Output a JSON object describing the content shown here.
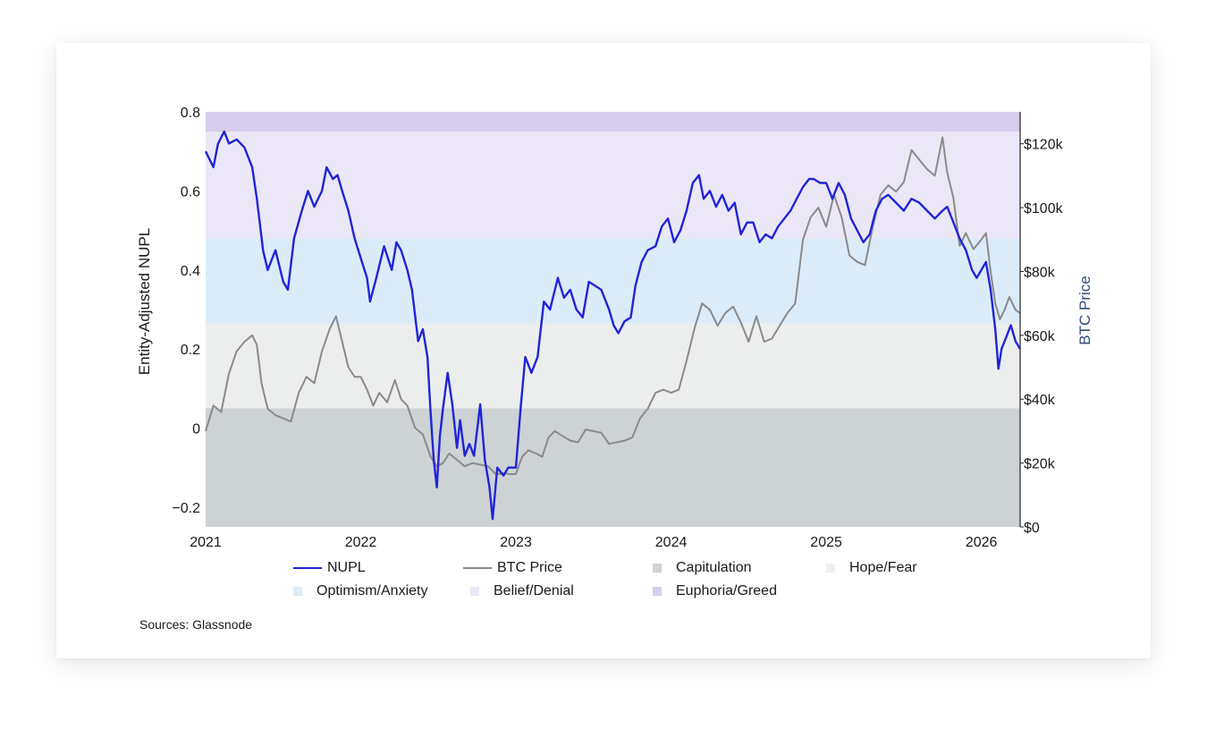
{
  "source_note": "Sources: Glassnode",
  "colors": {
    "nupl": "#1f24d8",
    "btc": "#8a8a8a",
    "capitulation": "#cdd2d4",
    "hope_fear": "#eceeed",
    "optimism_anxiety": "#dcebf8",
    "belief_denial": "#ece7f6",
    "euphoria_greed": "#d6ccec"
  },
  "legend": [
    {
      "label": "NUPL",
      "kind": "line",
      "color_key": "nupl"
    },
    {
      "label": "BTC Price",
      "kind": "line",
      "color_key": "btc"
    },
    {
      "label": "Capitulation",
      "kind": "box",
      "color_key": "capitulation"
    },
    {
      "label": "Hope/Fear",
      "kind": "box",
      "color_key": "hope_fear"
    },
    {
      "label": "Optimism/Anxiety",
      "kind": "box",
      "color_key": "optimism_anxiety"
    },
    {
      "label": "Belief/Denial",
      "kind": "box",
      "color_key": "belief_denial"
    },
    {
      "label": "Euphoria/Greed",
      "kind": "box",
      "color_key": "euphoria_greed"
    }
  ],
  "chart_data": {
    "type": "line",
    "title": "",
    "ylabel": "Entity-Adjusted NUPL",
    "y2label": "BTC Price",
    "xlim": [
      2021.0,
      2026.25
    ],
    "ylim": [
      -0.25,
      0.8
    ],
    "y2lim": [
      0,
      130000
    ],
    "x_ticks": [
      "2021",
      "2022",
      "2023",
      "2024",
      "2025",
      "2026"
    ],
    "y_ticks": [
      "−0.2",
      "0",
      "0.2",
      "0.4",
      "0.6",
      "0.8"
    ],
    "y2_ticks": [
      "$0",
      "$20k",
      "$40k",
      "$60k",
      "$80k",
      "$100k",
      "$120k"
    ],
    "zones": [
      {
        "name": "Capitulation",
        "from": -0.25,
        "to": 0.05,
        "color_key": "capitulation"
      },
      {
        "name": "Hope/Fear",
        "from": 0.05,
        "to": 0.265,
        "color_key": "hope_fear"
      },
      {
        "name": "Optimism/Anxiety",
        "from": 0.265,
        "to": 0.48,
        "color_key": "optimism_anxiety"
      },
      {
        "name": "Belief/Denial",
        "from": 0.48,
        "to": 0.75,
        "color_key": "belief_denial"
      },
      {
        "name": "Euphoria/Greed",
        "from": 0.75,
        "to": 0.8,
        "color_key": "euphoria_greed"
      }
    ],
    "series": [
      {
        "name": "NUPL",
        "axis": "left",
        "color_key": "nupl",
        "points": [
          [
            2021.0,
            0.7
          ],
          [
            2021.05,
            0.66
          ],
          [
            2021.08,
            0.72
          ],
          [
            2021.12,
            0.75
          ],
          [
            2021.15,
            0.72
          ],
          [
            2021.2,
            0.73
          ],
          [
            2021.25,
            0.71
          ],
          [
            2021.3,
            0.66
          ],
          [
            2021.33,
            0.58
          ],
          [
            2021.37,
            0.45
          ],
          [
            2021.4,
            0.4
          ],
          [
            2021.45,
            0.45
          ],
          [
            2021.5,
            0.37
          ],
          [
            2021.53,
            0.35
          ],
          [
            2021.57,
            0.48
          ],
          [
            2021.62,
            0.55
          ],
          [
            2021.66,
            0.6
          ],
          [
            2021.7,
            0.56
          ],
          [
            2021.75,
            0.6
          ],
          [
            2021.78,
            0.66
          ],
          [
            2021.82,
            0.63
          ],
          [
            2021.85,
            0.64
          ],
          [
            2021.88,
            0.6
          ],
          [
            2021.92,
            0.55
          ],
          [
            2021.96,
            0.48
          ],
          [
            2022.0,
            0.43
          ],
          [
            2022.04,
            0.38
          ],
          [
            2022.06,
            0.32
          ],
          [
            2022.1,
            0.38
          ],
          [
            2022.15,
            0.46
          ],
          [
            2022.2,
            0.4
          ],
          [
            2022.23,
            0.47
          ],
          [
            2022.26,
            0.45
          ],
          [
            2022.3,
            0.4
          ],
          [
            2022.33,
            0.35
          ],
          [
            2022.37,
            0.22
          ],
          [
            2022.4,
            0.25
          ],
          [
            2022.43,
            0.18
          ],
          [
            2022.45,
            0.04
          ],
          [
            2022.47,
            -0.08
          ],
          [
            2022.49,
            -0.15
          ],
          [
            2022.51,
            -0.02
          ],
          [
            2022.53,
            0.05
          ],
          [
            2022.56,
            0.14
          ],
          [
            2022.59,
            0.06
          ],
          [
            2022.62,
            -0.05
          ],
          [
            2022.64,
            0.02
          ],
          [
            2022.67,
            -0.07
          ],
          [
            2022.7,
            -0.04
          ],
          [
            2022.73,
            -0.07
          ],
          [
            2022.77,
            0.06
          ],
          [
            2022.8,
            -0.08
          ],
          [
            2022.83,
            -0.15
          ],
          [
            2022.85,
            -0.23
          ],
          [
            2022.88,
            -0.1
          ],
          [
            2022.92,
            -0.12
          ],
          [
            2022.95,
            -0.1
          ],
          [
            2023.0,
            -0.1
          ],
          [
            2023.03,
            0.05
          ],
          [
            2023.06,
            0.18
          ],
          [
            2023.1,
            0.14
          ],
          [
            2023.14,
            0.18
          ],
          [
            2023.18,
            0.32
          ],
          [
            2023.22,
            0.3
          ],
          [
            2023.27,
            0.38
          ],
          [
            2023.31,
            0.33
          ],
          [
            2023.35,
            0.35
          ],
          [
            2023.39,
            0.3
          ],
          [
            2023.43,
            0.28
          ],
          [
            2023.47,
            0.37
          ],
          [
            2023.51,
            0.36
          ],
          [
            2023.55,
            0.35
          ],
          [
            2023.6,
            0.3
          ],
          [
            2023.63,
            0.26
          ],
          [
            2023.66,
            0.24
          ],
          [
            2023.7,
            0.27
          ],
          [
            2023.74,
            0.28
          ],
          [
            2023.77,
            0.36
          ],
          [
            2023.81,
            0.42
          ],
          [
            2023.85,
            0.45
          ],
          [
            2023.9,
            0.46
          ],
          [
            2023.94,
            0.51
          ],
          [
            2023.98,
            0.53
          ],
          [
            2024.02,
            0.47
          ],
          [
            2024.06,
            0.5
          ],
          [
            2024.1,
            0.55
          ],
          [
            2024.14,
            0.62
          ],
          [
            2024.18,
            0.64
          ],
          [
            2024.21,
            0.58
          ],
          [
            2024.25,
            0.6
          ],
          [
            2024.29,
            0.56
          ],
          [
            2024.33,
            0.59
          ],
          [
            2024.37,
            0.55
          ],
          [
            2024.41,
            0.57
          ],
          [
            2024.45,
            0.49
          ],
          [
            2024.49,
            0.52
          ],
          [
            2024.53,
            0.52
          ],
          [
            2024.57,
            0.47
          ],
          [
            2024.61,
            0.49
          ],
          [
            2024.65,
            0.48
          ],
          [
            2024.69,
            0.51
          ],
          [
            2024.73,
            0.53
          ],
          [
            2024.77,
            0.55
          ],
          [
            2024.81,
            0.58
          ],
          [
            2024.85,
            0.61
          ],
          [
            2024.89,
            0.63
          ],
          [
            2024.92,
            0.63
          ],
          [
            2024.96,
            0.62
          ],
          [
            2025.0,
            0.62
          ],
          [
            2025.04,
            0.58
          ],
          [
            2025.08,
            0.62
          ],
          [
            2025.12,
            0.59
          ],
          [
            2025.16,
            0.53
          ],
          [
            2025.2,
            0.5
          ],
          [
            2025.24,
            0.47
          ],
          [
            2025.28,
            0.49
          ],
          [
            2025.32,
            0.55
          ],
          [
            2025.36,
            0.58
          ],
          [
            2025.4,
            0.59
          ],
          [
            2025.45,
            0.57
          ],
          [
            2025.5,
            0.55
          ],
          [
            2025.55,
            0.58
          ],
          [
            2025.6,
            0.57
          ],
          [
            2025.65,
            0.55
          ],
          [
            2025.7,
            0.53
          ],
          [
            2025.75,
            0.55
          ],
          [
            2025.78,
            0.56
          ],
          [
            2025.82,
            0.52
          ],
          [
            2025.86,
            0.48
          ],
          [
            2025.9,
            0.45
          ],
          [
            2025.94,
            0.4
          ],
          [
            2025.97,
            0.38
          ],
          [
            2026.0,
            0.4
          ],
          [
            2026.03,
            0.42
          ],
          [
            2026.06,
            0.35
          ],
          [
            2026.09,
            0.25
          ],
          [
            2026.11,
            0.15
          ],
          [
            2026.13,
            0.2
          ],
          [
            2026.16,
            0.23
          ],
          [
            2026.19,
            0.26
          ],
          [
            2026.22,
            0.22
          ],
          [
            2026.25,
            0.2
          ]
        ]
      },
      {
        "name": "BTC Price",
        "axis": "right",
        "color_key": "btc",
        "points": [
          [
            2021.0,
            30000
          ],
          [
            2021.05,
            38000
          ],
          [
            2021.1,
            36000
          ],
          [
            2021.15,
            48000
          ],
          [
            2021.2,
            55000
          ],
          [
            2021.25,
            58000
          ],
          [
            2021.3,
            60000
          ],
          [
            2021.33,
            57000
          ],
          [
            2021.36,
            45000
          ],
          [
            2021.4,
            37000
          ],
          [
            2021.45,
            35000
          ],
          [
            2021.5,
            34000
          ],
          [
            2021.55,
            33000
          ],
          [
            2021.6,
            42000
          ],
          [
            2021.65,
            47000
          ],
          [
            2021.7,
            45000
          ],
          [
            2021.75,
            55000
          ],
          [
            2021.8,
            62000
          ],
          [
            2021.84,
            66000
          ],
          [
            2021.88,
            58000
          ],
          [
            2021.92,
            50000
          ],
          [
            2021.96,
            47000
          ],
          [
            2022.0,
            47000
          ],
          [
            2022.04,
            43000
          ],
          [
            2022.08,
            38000
          ],
          [
            2022.12,
            42000
          ],
          [
            2022.17,
            39000
          ],
          [
            2022.22,
            46000
          ],
          [
            2022.26,
            40000
          ],
          [
            2022.3,
            38000
          ],
          [
            2022.35,
            31000
          ],
          [
            2022.4,
            29000
          ],
          [
            2022.45,
            22000
          ],
          [
            2022.49,
            19000
          ],
          [
            2022.53,
            20000
          ],
          [
            2022.57,
            23000
          ],
          [
            2022.62,
            21000
          ],
          [
            2022.67,
            19000
          ],
          [
            2022.72,
            20000
          ],
          [
            2022.77,
            19500
          ],
          [
            2022.82,
            19000
          ],
          [
            2022.87,
            16500
          ],
          [
            2022.92,
            16800
          ],
          [
            2022.97,
            16500
          ],
          [
            2023.0,
            16600
          ],
          [
            2023.04,
            22000
          ],
          [
            2023.08,
            24000
          ],
          [
            2023.13,
            23000
          ],
          [
            2023.17,
            22000
          ],
          [
            2023.21,
            28000
          ],
          [
            2023.25,
            30000
          ],
          [
            2023.3,
            28500
          ],
          [
            2023.35,
            27000
          ],
          [
            2023.4,
            26500
          ],
          [
            2023.45,
            30500
          ],
          [
            2023.5,
            30000
          ],
          [
            2023.55,
            29500
          ],
          [
            2023.6,
            26000
          ],
          [
            2023.65,
            26500
          ],
          [
            2023.7,
            27000
          ],
          [
            2023.75,
            28000
          ],
          [
            2023.8,
            34000
          ],
          [
            2023.85,
            37000
          ],
          [
            2023.9,
            42000
          ],
          [
            2023.95,
            43000
          ],
          [
            2024.0,
            42000
          ],
          [
            2024.05,
            43000
          ],
          [
            2024.1,
            52000
          ],
          [
            2024.15,
            62000
          ],
          [
            2024.2,
            70000
          ],
          [
            2024.25,
            68000
          ],
          [
            2024.3,
            63000
          ],
          [
            2024.35,
            67000
          ],
          [
            2024.4,
            69000
          ],
          [
            2024.45,
            64000
          ],
          [
            2024.5,
            58000
          ],
          [
            2024.55,
            66000
          ],
          [
            2024.6,
            58000
          ],
          [
            2024.65,
            59000
          ],
          [
            2024.7,
            63000
          ],
          [
            2024.75,
            67000
          ],
          [
            2024.8,
            70000
          ],
          [
            2024.85,
            90000
          ],
          [
            2024.9,
            97000
          ],
          [
            2024.95,
            100000
          ],
          [
            2025.0,
            94000
          ],
          [
            2025.05,
            104000
          ],
          [
            2025.1,
            97000
          ],
          [
            2025.15,
            85000
          ],
          [
            2025.2,
            83000
          ],
          [
            2025.25,
            82000
          ],
          [
            2025.3,
            94000
          ],
          [
            2025.35,
            104000
          ],
          [
            2025.4,
            107000
          ],
          [
            2025.45,
            105000
          ],
          [
            2025.5,
            108000
          ],
          [
            2025.55,
            118000
          ],
          [
            2025.6,
            115000
          ],
          [
            2025.65,
            112000
          ],
          [
            2025.7,
            110000
          ],
          [
            2025.75,
            122000
          ],
          [
            2025.78,
            111000
          ],
          [
            2025.82,
            103000
          ],
          [
            2025.86,
            88000
          ],
          [
            2025.9,
            92000
          ],
          [
            2025.95,
            87000
          ],
          [
            2026.0,
            90000
          ],
          [
            2026.03,
            92000
          ],
          [
            2026.06,
            80000
          ],
          [
            2026.09,
            70000
          ],
          [
            2026.12,
            65000
          ],
          [
            2026.15,
            68000
          ],
          [
            2026.18,
            72000
          ],
          [
            2026.22,
            68000
          ],
          [
            2026.25,
            67000
          ]
        ]
      }
    ],
    "legend_position": "bottom",
    "grid": false
  }
}
